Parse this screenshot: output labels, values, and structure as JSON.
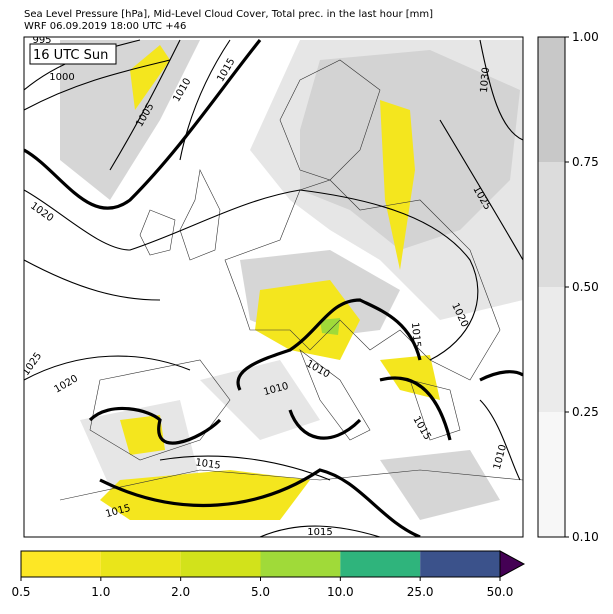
{
  "header": {
    "title_line1": "Sea Level Pressure [hPa], Mid-Level Cloud Cover, Total prec. in the last hour [mm]",
    "title_line2": "WRF 06.09.2019 18:00 UTC +46"
  },
  "map": {
    "time_label": "16 UTC Sun",
    "isobar_labels": [
      "995",
      "1000",
      "1005",
      "1010",
      "1015",
      "1030",
      "1020",
      "1025",
      "1020",
      "1025",
      "1020",
      "1015",
      "1010",
      "1010",
      "1015",
      "1015",
      "1015",
      "1015",
      "1010"
    ]
  },
  "cloud_colorbar": {
    "ticks": [
      "0.10",
      "0.25",
      "0.50",
      "0.75",
      "1.00"
    ],
    "colors": [
      "#f7f7f7",
      "#ebebeb",
      "#dcdcdc",
      "#c8c8c8"
    ]
  },
  "precip_colorbar": {
    "ticks": [
      "0.5",
      "1.0",
      "2.0",
      "5.0",
      "10.0",
      "25.0",
      "50.0"
    ],
    "colors": [
      "#fde725",
      "#eae51a",
      "#d2e21b",
      "#a0da39",
      "#2fb47c",
      "#3b528b"
    ],
    "extend_color": "#440154"
  }
}
